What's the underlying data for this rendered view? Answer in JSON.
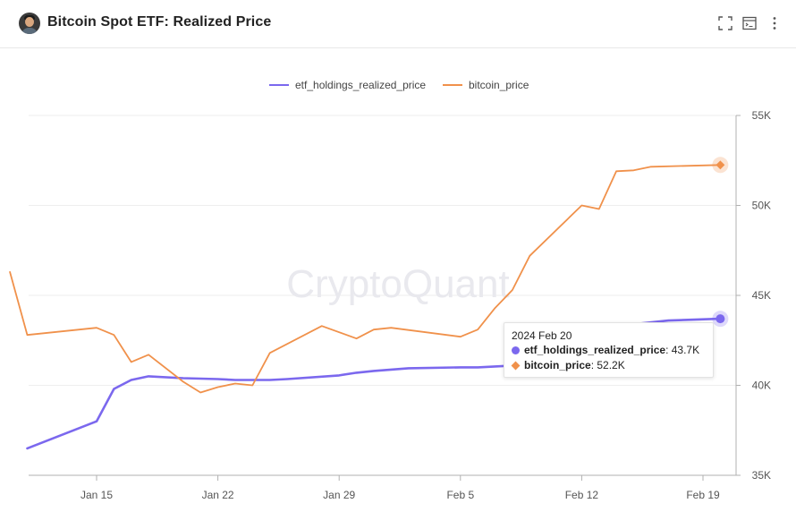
{
  "header": {
    "title": "Bitcoin Spot ETF: Realized Price",
    "icons": [
      "fullscreen-icon",
      "terminal-icon",
      "more-vertical-icon"
    ]
  },
  "watermark": "CryptoQuant",
  "colors": {
    "etf_holdings_realized_price": "#7b68ee",
    "bitcoin_price": "#f0914b",
    "grid": "#eeeeee",
    "axis_text": "#555555"
  },
  "tooltip": {
    "date": "2024 Feb 20",
    "items": [
      {
        "name": "etf_holdings_realized_price",
        "value": "43.7K"
      },
      {
        "name": "bitcoin_price",
        "value": "52.2K"
      }
    ]
  },
  "chart_data": {
    "type": "line",
    "title": "Bitcoin Spot ETF: Realized Price",
    "xlabel": "",
    "ylabel": "",
    "x_ticks": [
      "Jan 15",
      "Jan 22",
      "Jan 29",
      "Feb 5",
      "Feb 12",
      "Feb 19"
    ],
    "y_ticks": [
      "35K",
      "40K",
      "45K",
      "50K",
      "55K"
    ],
    "ylim": [
      35000,
      55000
    ],
    "xlim": [
      "2024-01-10",
      "2024-02-21"
    ],
    "grid": true,
    "legend": "top-center",
    "series": [
      {
        "name": "etf_holdings_realized_price",
        "points": [
          [
            "2024-01-11",
            36500
          ],
          [
            "2024-01-15",
            38000
          ],
          [
            "2024-01-16",
            39800
          ],
          [
            "2024-01-17",
            40300
          ],
          [
            "2024-01-18",
            40500
          ],
          [
            "2024-01-20",
            40400
          ],
          [
            "2024-01-22",
            40350
          ],
          [
            "2024-01-23",
            40300
          ],
          [
            "2024-01-25",
            40300
          ],
          [
            "2024-01-26",
            40350
          ],
          [
            "2024-01-29",
            40550
          ],
          [
            "2024-01-30",
            40700
          ],
          [
            "2024-01-31",
            40800
          ],
          [
            "2024-02-02",
            40950
          ],
          [
            "2024-02-05",
            41000
          ],
          [
            "2024-02-06",
            41000
          ],
          [
            "2024-02-07",
            41050
          ],
          [
            "2024-02-08",
            41100
          ],
          [
            "2024-02-12",
            42500
          ],
          [
            "2024-02-15",
            43400
          ],
          [
            "2024-02-17",
            43600
          ],
          [
            "2024-02-20",
            43700
          ]
        ]
      },
      {
        "name": "bitcoin_price",
        "points": [
          [
            "2024-01-10",
            46300
          ],
          [
            "2024-01-11",
            42800
          ],
          [
            "2024-01-15",
            43200
          ],
          [
            "2024-01-16",
            42800
          ],
          [
            "2024-01-17",
            41300
          ],
          [
            "2024-01-18",
            41700
          ],
          [
            "2024-01-20",
            40200
          ],
          [
            "2024-01-21",
            39600
          ],
          [
            "2024-01-22",
            39900
          ],
          [
            "2024-01-23",
            40100
          ],
          [
            "2024-01-24",
            40000
          ],
          [
            "2024-01-25",
            41800
          ],
          [
            "2024-01-28",
            43300
          ],
          [
            "2024-01-30",
            42600
          ],
          [
            "2024-01-31",
            43100
          ],
          [
            "2024-02-01",
            43200
          ],
          [
            "2024-02-05",
            42700
          ],
          [
            "2024-02-06",
            43100
          ],
          [
            "2024-02-07",
            44300
          ],
          [
            "2024-02-08",
            45300
          ],
          [
            "2024-02-09",
            47200
          ],
          [
            "2024-02-12",
            50000
          ],
          [
            "2024-02-13",
            49800
          ],
          [
            "2024-02-14",
            51900
          ],
          [
            "2024-02-15",
            51950
          ],
          [
            "2024-02-16",
            52150
          ],
          [
            "2024-02-20",
            52250
          ]
        ]
      }
    ]
  }
}
